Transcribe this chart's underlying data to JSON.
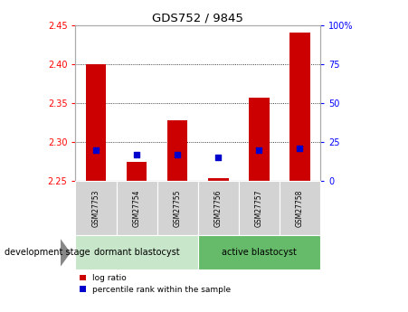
{
  "title": "GDS752 / 9845",
  "samples": [
    "GSM27753",
    "GSM27754",
    "GSM27755",
    "GSM27756",
    "GSM27757",
    "GSM27758"
  ],
  "log_ratio": [
    2.4,
    2.275,
    2.328,
    2.254,
    2.357,
    2.44
  ],
  "log_ratio_base": 2.25,
  "percentile_rank": [
    20,
    17,
    17,
    15,
    20,
    21
  ],
  "ylim_left": [
    2.25,
    2.45
  ],
  "ylim_right": [
    0,
    100
  ],
  "yticks_left": [
    2.25,
    2.3,
    2.35,
    2.4,
    2.45
  ],
  "yticks_right": [
    0,
    25,
    50,
    75,
    100
  ],
  "ytick_labels_right": [
    "0",
    "25",
    "50",
    "75",
    "100%"
  ],
  "gridlines": [
    2.3,
    2.35,
    2.4
  ],
  "group1_label": "dormant blastocyst",
  "group2_label": "active blastocyst",
  "group1_color": "#c8e6c9",
  "group2_color": "#66bb6a",
  "bar_color": "#cc0000",
  "dot_color": "#0000cc",
  "dev_stage_label": "development stage",
  "legend_log": "log ratio",
  "legend_pct": "percentile rank within the sample",
  "bar_width": 0.5,
  "sample_bg_color": "#d3d3d3",
  "cell_border_color": "#ffffff"
}
